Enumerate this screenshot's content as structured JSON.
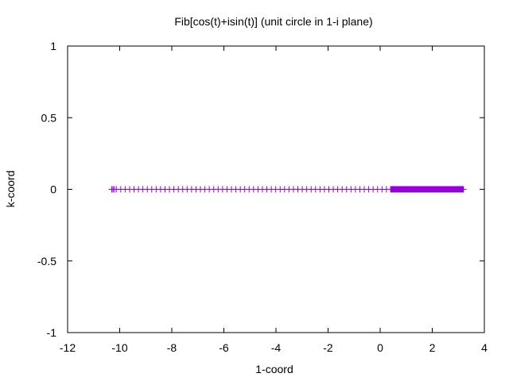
{
  "chart_data": {
    "type": "scatter",
    "title": "Fib[cos(t)+isin(t)] (unit circle in 1-i plane)",
    "xlabel": "1-coord",
    "ylabel": "k-coord",
    "xlim": [
      -12,
      4
    ],
    "ylim": [
      -1,
      1
    ],
    "xticks": [
      "-12",
      "-10",
      "-8",
      "-6",
      "-4",
      "-2",
      "0",
      "2",
      "4"
    ],
    "yticks": [
      "1",
      "0.5",
      "0",
      "-0.5",
      "-1"
    ],
    "grid": false,
    "legend": "none",
    "series": [
      {
        "color": "#9400d3",
        "marker": "plus",
        "x_range": [
          -10.3,
          3.2
        ],
        "y": 0,
        "dense_x_range": [
          0.4,
          3.2
        ],
        "sparse_x_step": 0.17,
        "dense_x_step": 0.02
      }
    ]
  }
}
